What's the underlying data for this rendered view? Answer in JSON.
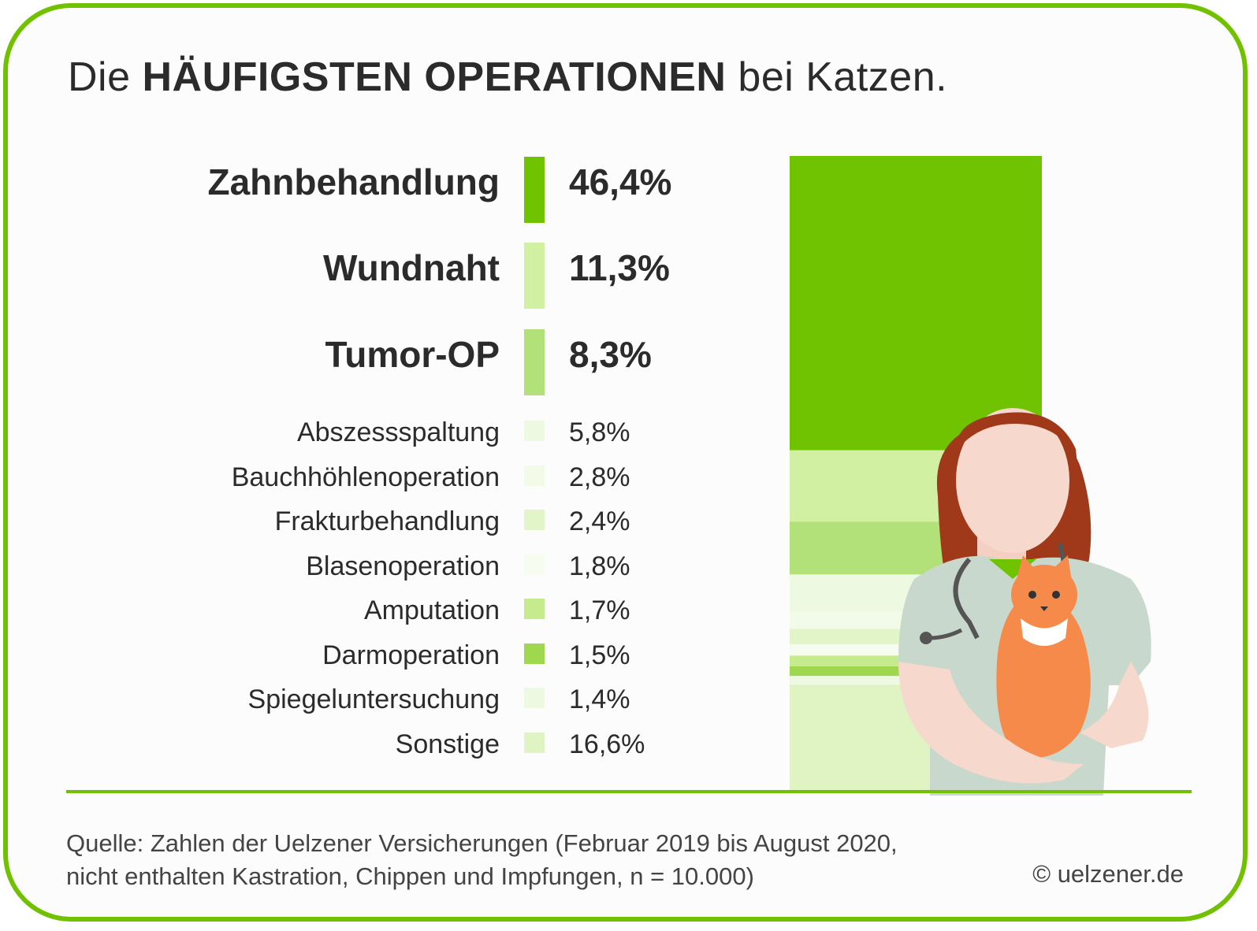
{
  "title": {
    "prefix": "Die ",
    "bold": "HÄUFIGSTEN OPERATIONEN",
    "suffix": " bei Katzen."
  },
  "chart_data": {
    "type": "bar",
    "orientation": "stacked-vertical",
    "unit": "%",
    "categories": [
      "Zahnbehandlung",
      "Wundnaht",
      "Tumor-OP",
      "Abszessspaltung",
      "Bauchhöhlenoperation",
      "Frakturbehandlung",
      "Blasenoperation",
      "Amputation",
      "Darmoperation",
      "Spiegeluntersuchung",
      "Sonstige"
    ],
    "values": [
      46.4,
      11.3,
      8.3,
      5.8,
      2.8,
      2.4,
      1.8,
      1.7,
      1.5,
      1.4,
      16.6
    ],
    "value_labels": [
      "46,4%",
      "11,3%",
      "8,3%",
      "5,8%",
      "2,8%",
      "2,4%",
      "1,8%",
      "1,7%",
      "1,5%",
      "1,4%",
      "16,6%"
    ],
    "colors": [
      "#6fc300",
      "#d2f0a1",
      "#b2e079",
      "#eef9e1",
      "#f2fbe8",
      "#e2f5c8",
      "#f6fcef",
      "#c6eb8f",
      "#9fd84f",
      "#eef9e1",
      "#dff4c2"
    ]
  },
  "source": {
    "line1": "Quelle: Zahlen der Uelzener Versicherungen (Februar 2019 bis August 2020,",
    "line2": "nicht enthalten Kastration, Chippen und Impfungen, n = 10.000)"
  },
  "copyright": "© uelzener.de",
  "illustration": "vet-holding-cat",
  "colors": {
    "accent": "#72c100",
    "text": "#2b2b2b"
  }
}
